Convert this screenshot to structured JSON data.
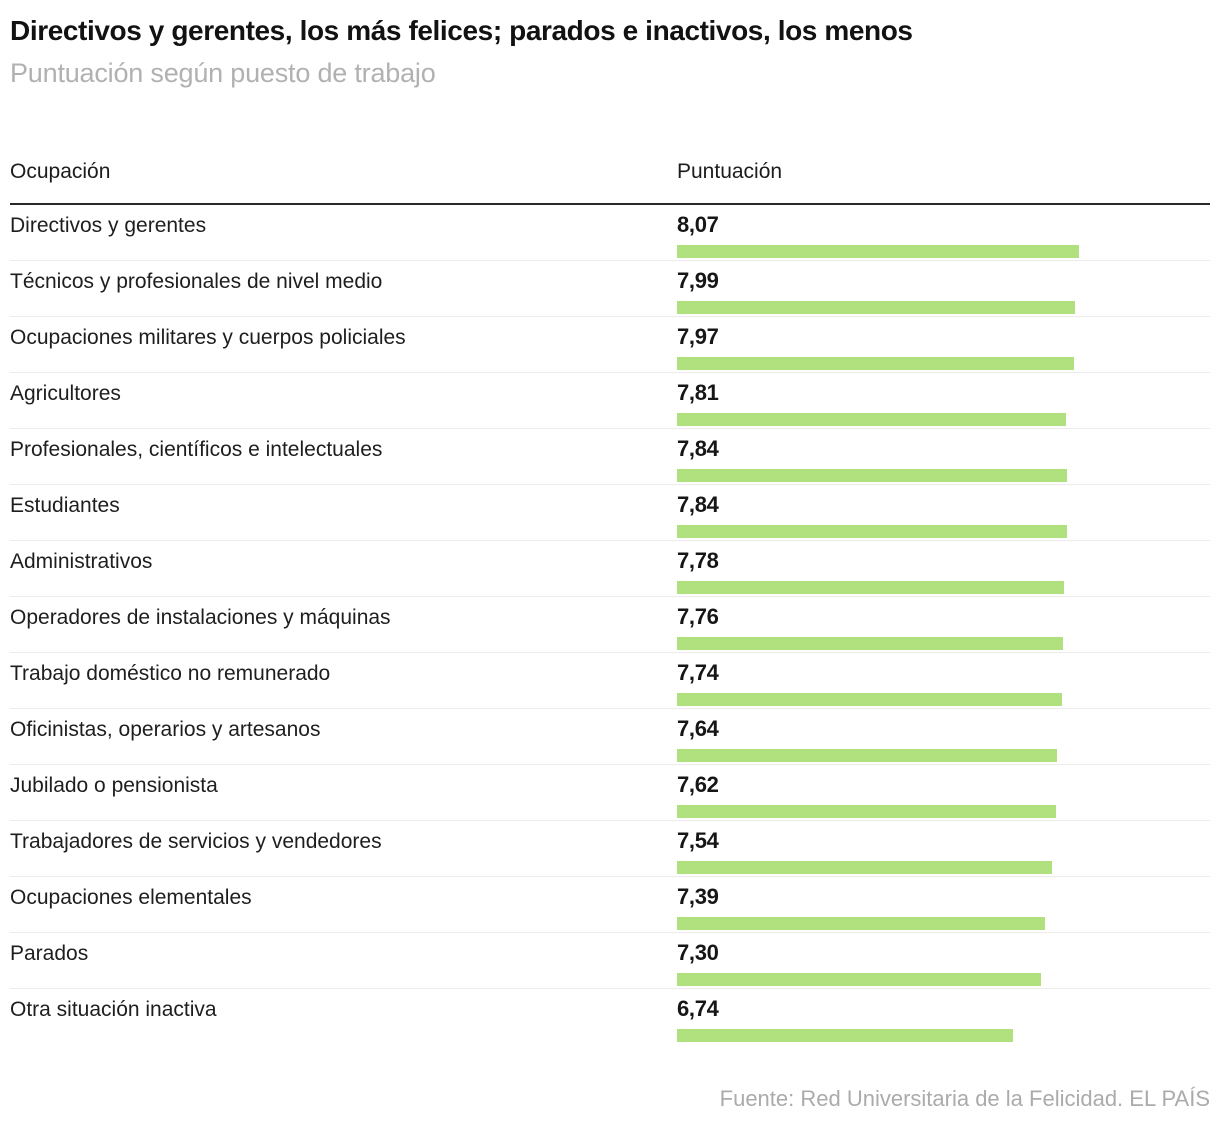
{
  "header": {
    "title": "Directivos y gerentes, los más felices; parados e inactivos, los menos",
    "subtitle": "Puntuación según puesto de trabajo"
  },
  "table": {
    "col_occupation": "Ocupación",
    "col_score": "Puntuación"
  },
  "footer": {
    "source": "Fuente: Red Universitaria de la Felicidad. EL PAÍS"
  },
  "colors": {
    "bar": "#b1e17e",
    "header_rule": "#2a2a2a",
    "row_separator": "#ececec",
    "title_text": "#121212",
    "subtitle_text": "#b1b1b1",
    "source_text": "#ababab"
  },
  "chart_data": {
    "type": "bar",
    "orientation": "horizontal",
    "title": "Directivos y gerentes, los más felices; parados e inactivos, los menos",
    "subtitle": "Puntuación según puesto de trabajo",
    "xlabel": "Puntuación",
    "ylabel": "Ocupación",
    "xlim": [
      0,
      8.6
    ],
    "grid": false,
    "legend": "none",
    "categories": [
      "Directivos y gerentes",
      "Técnicos y profesionales de nivel medio",
      "Ocupaciones militares y cuerpos policiales",
      "Agricultores",
      "Profesionales, científicos e intelectuales",
      "Estudiantes",
      "Administrativos",
      "Operadores de instalaciones y máquinas",
      "Trabajo doméstico no remunerado",
      "Oficinistas, operarios y artesanos",
      "Jubilado o pensionista",
      "Trabajadores de servicios y vendedores",
      "Ocupaciones elementales",
      "Parados",
      "Otra situación inactiva"
    ],
    "values": [
      8.07,
      7.99,
      7.97,
      7.81,
      7.84,
      7.84,
      7.78,
      7.76,
      7.74,
      7.64,
      7.62,
      7.54,
      7.39,
      7.3,
      6.74
    ],
    "value_labels": [
      "8,07",
      "7,99",
      "7,97",
      "7,81",
      "7,84",
      "7,84",
      "7,78",
      "7,76",
      "7,74",
      "7,64",
      "7,62",
      "7,54",
      "7,39",
      "7,30",
      "6,74"
    ]
  }
}
